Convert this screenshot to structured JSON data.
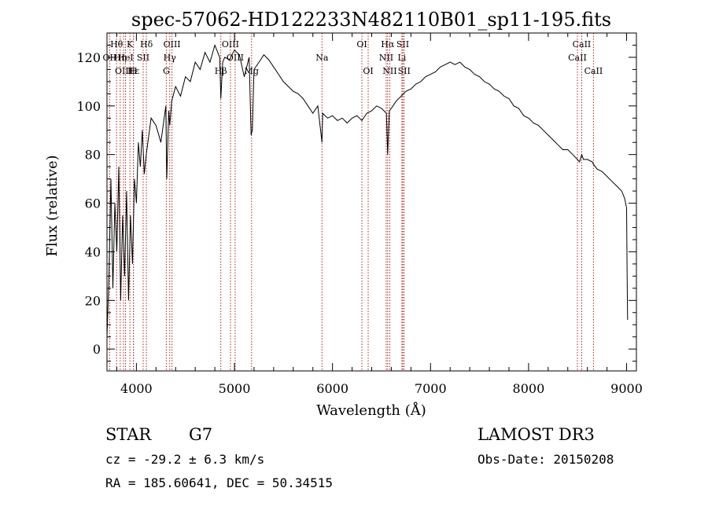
{
  "chart_data": {
    "type": "line",
    "title": "spec-57062-HD122233N482110B01_sp11-195.fits",
    "xlabel": "Wavelength (Å)",
    "ylabel": "Flux (relative)",
    "xlim": [
      3700,
      9100
    ],
    "ylim": [
      -9,
      130
    ],
    "x_ticks": [
      4000,
      5000,
      6000,
      7000,
      8000,
      9000
    ],
    "y_ticks": [
      0,
      20,
      40,
      60,
      80,
      100,
      120
    ],
    "series": [
      {
        "name": "flux",
        "x": [
          3700,
          3720,
          3740,
          3760,
          3780,
          3800,
          3820,
          3840,
          3860,
          3880,
          3900,
          3920,
          3940,
          3960,
          3980,
          4000,
          4020,
          4040,
          4060,
          4080,
          4100,
          4150,
          4200,
          4250,
          4300,
          4310,
          4330,
          4340,
          4360,
          4400,
          4450,
          4500,
          4550,
          4600,
          4650,
          4700,
          4750,
          4800,
          4850,
          4861,
          4880,
          4900,
          4950,
          5000,
          5050,
          5100,
          5150,
          5170,
          5183,
          5200,
          5250,
          5300,
          5350,
          5400,
          5450,
          5500,
          5550,
          5600,
          5650,
          5700,
          5750,
          5800,
          5850,
          5893,
          5900,
          5950,
          6000,
          6050,
          6100,
          6150,
          6200,
          6250,
          6300,
          6350,
          6400,
          6450,
          6500,
          6550,
          6563,
          6580,
          6600,
          6650,
          6700,
          6750,
          6800,
          6850,
          6900,
          6950,
          7000,
          7050,
          7100,
          7150,
          7200,
          7250,
          7300,
          7350,
          7400,
          7450,
          7500,
          7550,
          7600,
          7650,
          7700,
          7750,
          7800,
          7850,
          7900,
          7950,
          8000,
          8050,
          8100,
          8150,
          8200,
          8250,
          8300,
          8350,
          8400,
          8450,
          8498,
          8520,
          8542,
          8560,
          8600,
          8650,
          8662,
          8700,
          8750,
          8800,
          8850,
          8900,
          8950,
          8980,
          9000,
          9005,
          9010
        ],
        "values": [
          5,
          30,
          70,
          25,
          60,
          40,
          75,
          20,
          55,
          30,
          65,
          20,
          55,
          35,
          70,
          60,
          85,
          75,
          90,
          72,
          80,
          95,
          92,
          85,
          100,
          70,
          98,
          92,
          102,
          108,
          104,
          112,
          110,
          118,
          115,
          122,
          118,
          125,
          120,
          103,
          118,
          120,
          119,
          123,
          121,
          112,
          120,
          88,
          90,
          115,
          118,
          121,
          119,
          116,
          113,
          110,
          108,
          106,
          105,
          103,
          100,
          97,
          100,
          85,
          97,
          95,
          96,
          94,
          95,
          93,
          95,
          96,
          94,
          97,
          98,
          100,
          99,
          97,
          80,
          98,
          99,
          102,
          104,
          106,
          107,
          109,
          110,
          112,
          113,
          114,
          116,
          117,
          118,
          117,
          118,
          116,
          115,
          113,
          112,
          110,
          109,
          107,
          106,
          104,
          103,
          100,
          99,
          96,
          95,
          93,
          92,
          90,
          88,
          86,
          84,
          82,
          82,
          80,
          78,
          77,
          80,
          78,
          78,
          77,
          76,
          74,
          73,
          71,
          69,
          67,
          65,
          62,
          58,
          30,
          12
        ]
      }
    ],
    "line_markers": [
      {
        "label": "Hθ",
        "wavelength": 3798,
        "row": 1
      },
      {
        "label": "OII",
        "wavelength": 3727,
        "row": 2
      },
      {
        "label": "Hη",
        "wavelength": 3835,
        "row": 2
      },
      {
        "label": "OIII",
        "wavelength": 3869,
        "row": 3
      },
      {
        "label": "K",
        "wavelength": 3934,
        "row": 1
      },
      {
        "label": "HeI",
        "wavelength": 3889,
        "row": 2
      },
      {
        "label": "Hε",
        "wavelength": 3970,
        "row": 3
      },
      {
        "label": "SII",
        "wavelength": 4069,
        "row": 2
      },
      {
        "label": "H",
        "wavelength": 3969,
        "row": 3
      },
      {
        "label": "Hδ",
        "wavelength": 4102,
        "row": 1
      },
      {
        "label": "OIII",
        "wavelength": 4363,
        "row": 1
      },
      {
        "label": "Hγ",
        "wavelength": 4340,
        "row": 2
      },
      {
        "label": "G",
        "wavelength": 4305,
        "row": 3
      },
      {
        "label": "OIII",
        "wavelength": 4959,
        "row": 1
      },
      {
        "label": "OIII",
        "wavelength": 5007,
        "row": 2
      },
      {
        "label": "Hβ",
        "wavelength": 4861,
        "row": 3
      },
      {
        "label": "Mg",
        "wavelength": 5175,
        "row": 3
      },
      {
        "label": "Na",
        "wavelength": 5893,
        "row": 2
      },
      {
        "label": "OI",
        "wavelength": 6300,
        "row": 1
      },
      {
        "label": "OI",
        "wavelength": 6364,
        "row": 3
      },
      {
        "label": "Hα",
        "wavelength": 6563,
        "row": 1
      },
      {
        "label": "SII",
        "wavelength": 6717,
        "row": 1
      },
      {
        "label": "NII",
        "wavelength": 6548,
        "row": 2
      },
      {
        "label": "Li",
        "wavelength": 6708,
        "row": 2
      },
      {
        "label": "NII",
        "wavelength": 6584,
        "row": 3
      },
      {
        "label": "SII",
        "wavelength": 6731,
        "row": 3
      },
      {
        "label": "CaII",
        "wavelength": 8542,
        "row": 1
      },
      {
        "label": "CaII",
        "wavelength": 8498,
        "row": 2
      },
      {
        "label": "CaII",
        "wavelength": 8662,
        "row": 3
      }
    ]
  },
  "info": {
    "class_label": "STAR",
    "subclass": "G7",
    "survey": "LAMOST DR3",
    "cz": "cz = -29.2 ± 6.3 km/s",
    "obs_date": "Obs-Date: 20150208",
    "radec": "RA = 185.60641, DEC =  50.34515"
  },
  "colors": {
    "line_marker": "#b22222",
    "spectrum": "#000000"
  }
}
